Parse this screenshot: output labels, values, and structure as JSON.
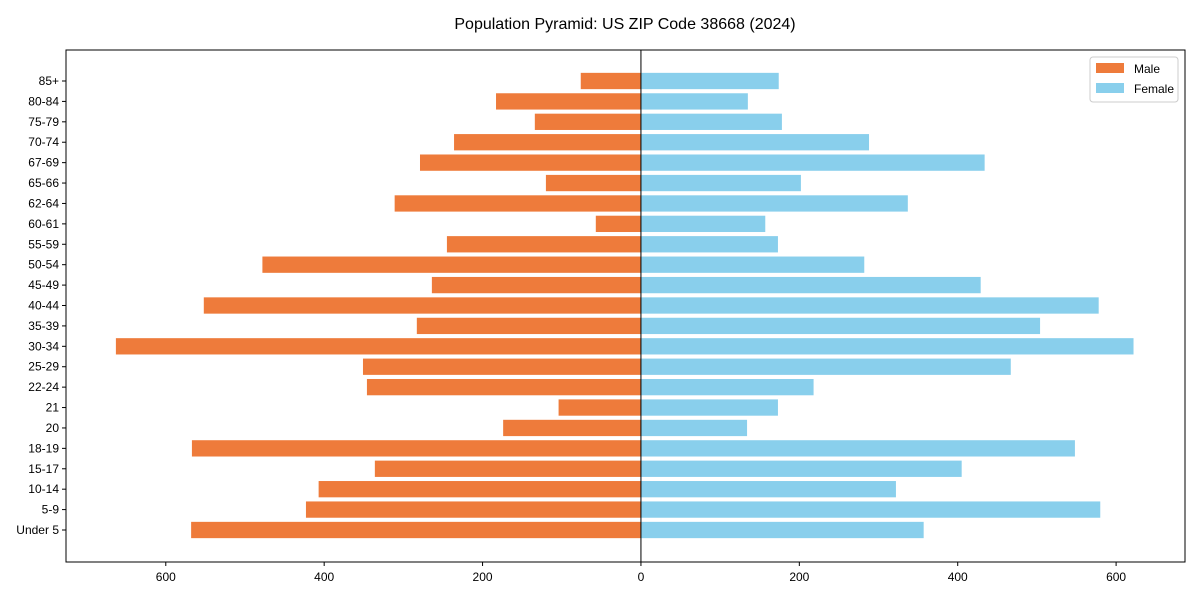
{
  "chart_data": {
    "type": "bar",
    "orientation": "horizontal",
    "title": "Population Pyramid: US ZIP Code 38668 (2024)",
    "xlabel": "",
    "ylabel": "",
    "xlim": [
      -726,
      687
    ],
    "xticks": [
      -600,
      -400,
      -200,
      0,
      200,
      400,
      600
    ],
    "xtick_labels": [
      "600",
      "400",
      "200",
      "0",
      "200",
      "400",
      "600"
    ],
    "categories": [
      "Under 5",
      "5-9",
      "10-14",
      "15-17",
      "18-19",
      "20",
      "21",
      "22-24",
      "25-29",
      "30-34",
      "35-39",
      "40-44",
      "45-49",
      "50-54",
      "55-59",
      "60-61",
      "62-64",
      "65-66",
      "67-69",
      "70-74",
      "75-79",
      "80-84",
      "85+"
    ],
    "series": [
      {
        "name": "Male",
        "color": "#EE7B3B",
        "values": [
          568,
          423,
          407,
          336,
          567,
          174,
          104,
          346,
          351,
          663,
          283,
          552,
          264,
          478,
          245,
          57,
          311,
          120,
          279,
          236,
          134,
          183,
          76
        ]
      },
      {
        "name": "Female",
        "color": "#89CFEC",
        "values": [
          357,
          580,
          322,
          405,
          548,
          134,
          173,
          218,
          467,
          622,
          504,
          578,
          429,
          282,
          173,
          157,
          337,
          202,
          434,
          288,
          178,
          135,
          174
        ]
      }
    ],
    "legend_position": "top-right",
    "grid": false
  }
}
